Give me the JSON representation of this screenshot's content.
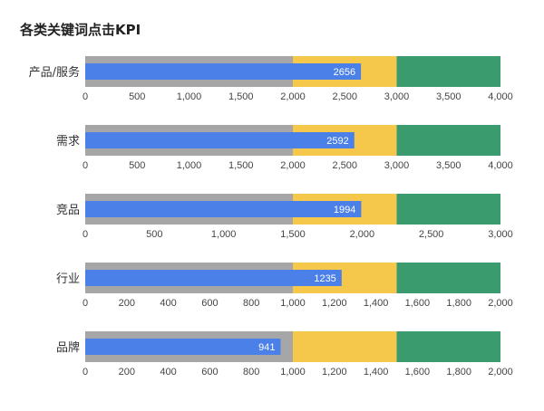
{
  "chart_data": {
    "type": "bar",
    "subtype": "bullet",
    "title": "各类关键词点击KPI",
    "colors": {
      "poor": "#a6a6a6",
      "satisfactory": "#f5c84c",
      "good": "#3a9c6e",
      "measure": "#4a80e8"
    },
    "rows": [
      {
        "category": "产品/服务",
        "value": 2656,
        "ranges": [
          2000,
          3000,
          4000
        ],
        "xlim": [
          0,
          4000
        ],
        "ticks": [
          "0",
          "500",
          "1,000",
          "1,500",
          "2,000",
          "2,500",
          "3,000",
          "3,500",
          "4,000"
        ],
        "tick_values": [
          0,
          500,
          1000,
          1500,
          2000,
          2500,
          3000,
          3500,
          4000
        ]
      },
      {
        "category": "需求",
        "value": 2592,
        "ranges": [
          2000,
          3000,
          4000
        ],
        "xlim": [
          0,
          4000
        ],
        "ticks": [
          "0",
          "500",
          "1,000",
          "1,500",
          "2,000",
          "2,500",
          "3,000",
          "3,500",
          "4,000"
        ],
        "tick_values": [
          0,
          500,
          1000,
          1500,
          2000,
          2500,
          3000,
          3500,
          4000
        ]
      },
      {
        "category": "竞品",
        "value": 1994,
        "ranges": [
          1500,
          2250,
          3000
        ],
        "xlim": [
          0,
          3000
        ],
        "ticks": [
          "0",
          "500",
          "1,000",
          "1,500",
          "2,000",
          "2,500",
          "3,000"
        ],
        "tick_values": [
          0,
          500,
          1000,
          1500,
          2000,
          2500,
          3000
        ]
      },
      {
        "category": "行业",
        "value": 1235,
        "ranges": [
          1000,
          1500,
          2000
        ],
        "xlim": [
          0,
          2000
        ],
        "ticks": [
          "0",
          "200",
          "400",
          "600",
          "800",
          "1,000",
          "1,200",
          "1,400",
          "1,600",
          "1,800",
          "2,000"
        ],
        "tick_values": [
          0,
          200,
          400,
          600,
          800,
          1000,
          1200,
          1400,
          1600,
          1800,
          2000
        ]
      },
      {
        "category": "品牌",
        "value": 941,
        "ranges": [
          1000,
          1500,
          2000
        ],
        "xlim": [
          0,
          2000
        ],
        "ticks": [
          "0",
          "200",
          "400",
          "600",
          "800",
          "1,000",
          "1,200",
          "1,400",
          "1,600",
          "1,800",
          "2,000"
        ],
        "tick_values": [
          0,
          200,
          400,
          600,
          800,
          1000,
          1200,
          1400,
          1600,
          1800,
          2000
        ]
      }
    ],
    "grid": false,
    "legend": "none"
  }
}
